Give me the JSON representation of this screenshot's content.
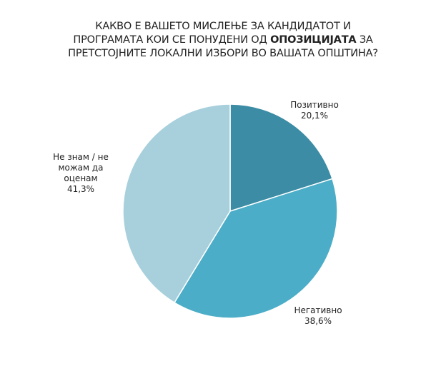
{
  "chart_data": {
    "type": "pie",
    "title_lines": [
      {
        "parts": [
          {
            "text": "КАКВО Е ВАШЕТО МИСЛЕЊЕ ЗА КАНДИДАТОТ И",
            "bold": false
          }
        ]
      },
      {
        "parts": [
          {
            "text": "ПРОГРАМАТА КОИ СЕ ПОНУДЕНИ ОД ",
            "bold": false
          },
          {
            "text": "ОПОЗИЦИЈАТА",
            "bold": true
          },
          {
            "text": " ЗА",
            "bold": false
          }
        ]
      },
      {
        "parts": [
          {
            "text": "ПРЕТСТОЈНИТЕ ЛОКАЛНИ ИЗБОРИ ВО ВАШАТА ОПШТИНА?",
            "bold": false
          }
        ]
      }
    ],
    "slices": [
      {
        "label": "Позитивно",
        "value": 20.1,
        "value_label": "20,1%",
        "color": "#3b8ca4"
      },
      {
        "label": "Негативно",
        "value": 38.6,
        "value_label": "38,6%",
        "color": "#4badc7"
      },
      {
        "label": "Не знам / не можам да оценам",
        "value": 41.3,
        "value_label": "41,3%",
        "color": "#a8d0dc"
      }
    ],
    "start_angle": "12 o'clock",
    "direction": "clockwise",
    "legend": "none"
  }
}
